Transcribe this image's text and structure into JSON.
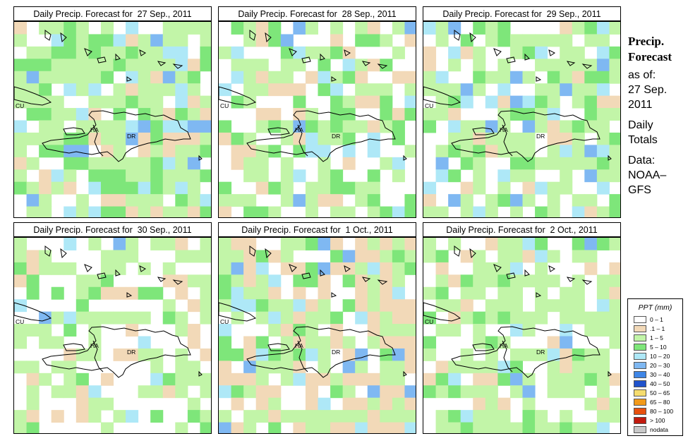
{
  "grid": {
    "cols": 16,
    "rows": 16
  },
  "panels": [
    {
      "title": "Daily Precip. Forecast for  27 Sep., 2011",
      "seed": 27,
      "weights": {
        "white": 14,
        "tan": 14,
        "lg": 40,
        "g": 20,
        "lb": 8,
        "b": 4
      }
    },
    {
      "title": "Daily Precip. Forecast for  28 Sep., 2011",
      "seed": 28,
      "weights": {
        "white": 30,
        "tan": 12,
        "lg": 34,
        "g": 14,
        "lb": 6,
        "b": 4
      }
    },
    {
      "title": "Daily Precip. Forecast for  29 Sep., 2011",
      "seed": 29,
      "weights": {
        "white": 28,
        "tan": 10,
        "lg": 38,
        "g": 14,
        "lb": 6,
        "b": 4
      }
    },
    {
      "title": "Daily Precip. Forecast for  30 Sep., 2011",
      "seed": 30,
      "weights": {
        "white": 50,
        "tan": 12,
        "lg": 28,
        "g": 6,
        "lb": 3,
        "b": 1
      }
    },
    {
      "title": "Daily Precip. Forecast for  1 Oct., 2011",
      "seed": 31,
      "weights": {
        "white": 18,
        "tan": 30,
        "lg": 30,
        "g": 10,
        "lb": 8,
        "b": 4
      }
    },
    {
      "title": "Daily Precip. Forecast for  2 Oct., 2011",
      "seed": 32,
      "weights": {
        "white": 26,
        "tan": 8,
        "lg": 46,
        "g": 14,
        "lb": 4,
        "b": 2
      }
    }
  ],
  "map_labels": {
    "cuba": "CU",
    "haiti": "HA",
    "dominican_republic": "DR"
  },
  "sidebar": {
    "heading_1": "Precip.",
    "heading_2": "Forecast",
    "asof": "as of:",
    "date_1": "27 Sep.",
    "date_2": "2011",
    "daily": "Daily",
    "totals": "Totals",
    "data_label": "Data:",
    "source_1": "NOAA–",
    "source_2": "GFS"
  },
  "legend": {
    "title": "PPT (mm)",
    "items": [
      {
        "label": "0 – 1",
        "color": "#ffffff"
      },
      {
        "label": ".1 – 1",
        "color": "#f2d9b8"
      },
      {
        "label": "1 – 5",
        "color": "#c2f5a8"
      },
      {
        "label": "5 – 10",
        "color": "#7ee67a"
      },
      {
        "label": "10 – 20",
        "color": "#aee8f7"
      },
      {
        "label": "20 – 30",
        "color": "#7fb8f2"
      },
      {
        "label": "30 – 40",
        "color": "#3f86e6"
      },
      {
        "label": "40 – 50",
        "color": "#1f52cc"
      },
      {
        "label": "50 – 65",
        "color": "#f5dc6e"
      },
      {
        "label": "65 – 80",
        "color": "#f29a1a"
      },
      {
        "label": "80 – 100",
        "color": "#e8500e"
      },
      {
        "label": "> 100",
        "color": "#c21a0e"
      },
      {
        "label": "nodata",
        "color": "#c8c8c8"
      }
    ]
  },
  "palette": {
    "white": "#ffffff",
    "tan": "#f2d9b8",
    "lg": "#c2f5a8",
    "g": "#7ee67a",
    "lb": "#aee8f7",
    "b": "#7fb8f2",
    "db": "#3f86e6",
    "yellow": "#f5dc6e"
  }
}
